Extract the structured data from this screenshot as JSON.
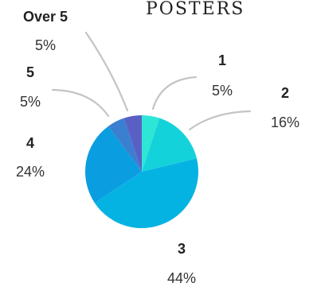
{
  "chart_data": {
    "type": "pie",
    "title": "POSTERS",
    "categories": [
      "1",
      "2",
      "3",
      "4",
      "5",
      "Over 5"
    ],
    "values": [
      5,
      16,
      44,
      24,
      5,
      5
    ],
    "value_labels": [
      "5%",
      "16%",
      "44%",
      "24%",
      "5%",
      "5%"
    ],
    "colors": [
      "#2ee6d6",
      "#14d2da",
      "#05b3e3",
      "#0a9ee0",
      "#3b7fd1",
      "#5a5fc4"
    ],
    "legend": "none"
  }
}
